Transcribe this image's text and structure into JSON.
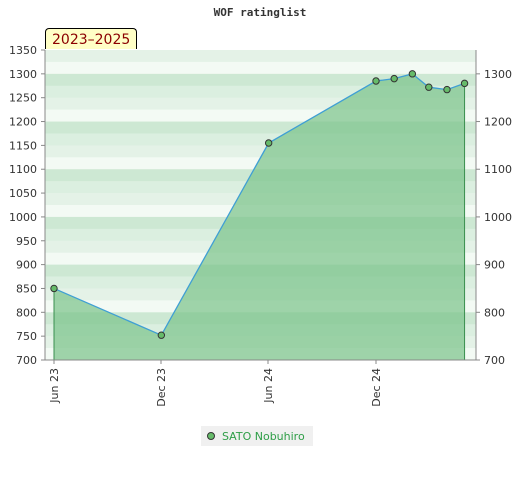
{
  "title": "WOF ratinglist",
  "badge": "2023–2025",
  "chart_data": {
    "type": "area",
    "title": "WOF ratinglist",
    "x_tick_labels": [
      "Jun 23",
      "Dec 23",
      "Jun 24",
      "Dec 24"
    ],
    "y_ticks_left": [
      700,
      750,
      800,
      850,
      900,
      950,
      1000,
      1050,
      1100,
      1150,
      1200,
      1250,
      1300,
      1350
    ],
    "y_ticks_right": [
      700,
      800,
      900,
      1000,
      1100,
      1200,
      1300
    ],
    "ylim": [
      700,
      1350
    ],
    "grid": true,
    "legend_position": "bottom",
    "series": [
      {
        "name": "SATO Nobuhiro",
        "points": [
          {
            "x": "2023-06-01",
            "y": 850
          },
          {
            "x": "2023-12-01",
            "y": 752
          },
          {
            "x": "2024-06-01",
            "y": 1155
          },
          {
            "x": "2024-12-01",
            "y": 1285
          },
          {
            "x": "2025-01-01",
            "y": 1290
          },
          {
            "x": "2025-02-01",
            "y": 1300
          },
          {
            "x": "2025-03-01",
            "y": 1272
          },
          {
            "x": "2025-04-01",
            "y": 1267
          },
          {
            "x": "2025-05-01",
            "y": 1280
          }
        ]
      }
    ],
    "colors": {
      "area": "#7dc38c",
      "line": "#3f9fd4",
      "marker": "#66bb6a",
      "legend_text": "#2e9e47",
      "badge_text": "#8b0000",
      "badge_bg": "#ffffc6"
    }
  }
}
